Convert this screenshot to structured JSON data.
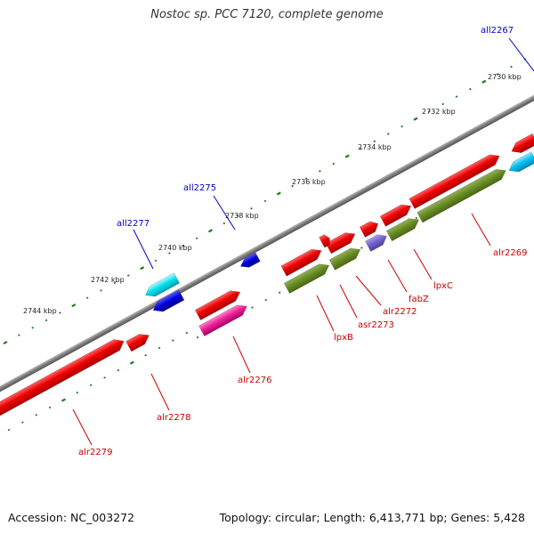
{
  "title": "Nostoc sp. PCC 7120, complete genome",
  "footer": {
    "accession": "Accession: NC_003272",
    "summary": "Topology: circular; Length: 6,413,771 bp; Genes: 5,428"
  },
  "colors": {
    "backbone": "#7a7a7a",
    "tick": "#1e7a1e",
    "forward_label": "#0000cc",
    "reverse_label": "#cc0000"
  },
  "scale": {
    "unit": "kbp",
    "labels": [
      "2730 kbp",
      "2732 kbp",
      "2734 kbp",
      "2736 kbp",
      "2738 kbp",
      "2740 kbp",
      "2742 kbp",
      "2744 kbp"
    ]
  },
  "genes": [
    {
      "label": "all2267",
      "strand": "reverse",
      "color": "#00c8ee"
    },
    {
      "label": "alr2269",
      "strand": "forward",
      "color": "#ee0000"
    },
    {
      "label": "lpxC",
      "strand": "forward",
      "color": "#ee0000"
    },
    {
      "label": "fabZ",
      "strand": "forward",
      "color": "#7766cc"
    },
    {
      "label": "alr2272",
      "strand": "forward",
      "color": "#ee0000"
    },
    {
      "label": "asr2273",
      "strand": "forward",
      "color": "#ee0000"
    },
    {
      "label": "lpxB",
      "strand": "forward",
      "color": "#ee0000"
    },
    {
      "label": "all2275",
      "strand": "reverse",
      "color": "#0000dd"
    },
    {
      "label": "alr2276",
      "strand": "forward",
      "color": "#ee0000"
    },
    {
      "label": "all2277",
      "strand": "reverse",
      "color": "#00e0ee"
    },
    {
      "label": "alr2278",
      "strand": "forward",
      "color": "#ee0000"
    },
    {
      "label": "alr2279",
      "strand": "forward",
      "color": "#ee0000"
    }
  ]
}
